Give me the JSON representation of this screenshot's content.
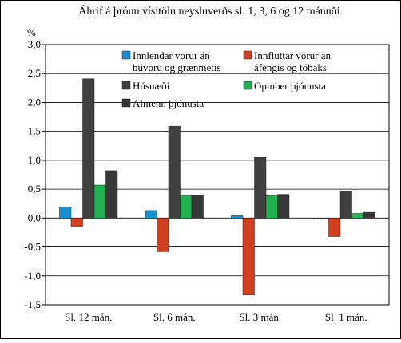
{
  "chart_data": {
    "type": "bar",
    "title": "Áhrif á þróun vísitölu neysluverðs sl. 1, 3, 6 og 12 mánuði",
    "y_label": "%",
    "categories": [
      "Sl. 12 mán.",
      "Sl. 6 mán.",
      "Sl. 3 mán.",
      "Sl. 1 mán."
    ],
    "series": [
      {
        "name": "Innlendar vörur án\nbúvöru og grænmetis",
        "color": "#1a8fd0",
        "values": [
          0.19,
          0.13,
          0.04,
          -0.01
        ]
      },
      {
        "name": "Innfluttar vörur án\náfengis og tóbaks",
        "color": "#d04020",
        "values": [
          -0.15,
          -0.58,
          -1.33,
          -0.32
        ]
      },
      {
        "name": "Húsnæði",
        "color": "#404040",
        "values": [
          2.41,
          1.59,
          1.05,
          0.47
        ]
      },
      {
        "name": "Opinber þjónusta",
        "color": "#20b050",
        "values": [
          0.57,
          0.39,
          0.39,
          0.08
        ]
      },
      {
        "name": "Almenn þjónusta",
        "color": "#383838",
        "values": [
          0.82,
          0.4,
          0.41,
          0.1
        ]
      }
    ],
    "ylim": [
      -1.5,
      3.0
    ],
    "yticks": [
      {
        "value": -1.5,
        "label": "-1,5"
      },
      {
        "value": -1.0,
        "label": "-1,0"
      },
      {
        "value": -0.5,
        "label": "-0,5"
      },
      {
        "value": 0,
        "label": "0,0"
      },
      {
        "value": 0.5,
        "label": "0,5"
      },
      {
        "value": 1.0,
        "label": "1,0"
      },
      {
        "value": 1.5,
        "label": "1,5"
      },
      {
        "value": 2.0,
        "label": "2,0"
      },
      {
        "value": 2.5,
        "label": "2,5"
      },
      {
        "value": 3.0,
        "label": "3,0"
      }
    ],
    "grid": true,
    "legend": "top"
  }
}
